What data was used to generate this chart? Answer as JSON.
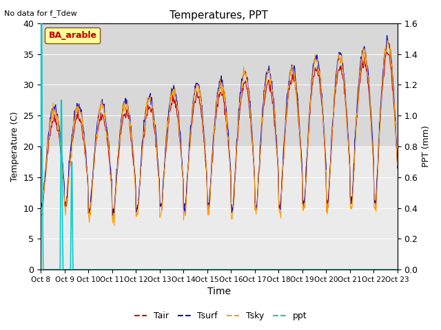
{
  "title": "Temperatures, PPT",
  "note": "No data for f_Tdew",
  "xlabel": "Time",
  "ylabel_left": "Temperature (C)",
  "ylabel_right": "PPT (mm)",
  "legend_label": "BA_arable",
  "x_tick_labels": [
    "Oct 8",
    "Oct 9",
    "Oct 10",
    "Oct 11",
    "Oct 12",
    "Oct 13",
    "Oct 14",
    "Oct 15",
    "Oct 16",
    "Oct 17",
    "Oct 18",
    "Oct 19",
    "Oct 20",
    "Oct 21",
    "Oct 22",
    "Oct 23"
  ],
  "ylim_left": [
    0,
    40
  ],
  "ylim_right": [
    0.0,
    1.6
  ],
  "yticks_left": [
    0,
    5,
    10,
    15,
    20,
    25,
    30,
    35,
    40
  ],
  "yticks_right": [
    0.0,
    0.2,
    0.4,
    0.6,
    0.8,
    1.0,
    1.2,
    1.4,
    1.6
  ],
  "tair_color": "#cc0000",
  "tsurf_color": "#0000cc",
  "tsky_color": "#ff9900",
  "ppt_color": "#00cccc",
  "plot_bg_color": "#ebebeb",
  "plot_bg_upper": "#d8d8d8",
  "n_days": 15,
  "n_points_per_day": 48
}
